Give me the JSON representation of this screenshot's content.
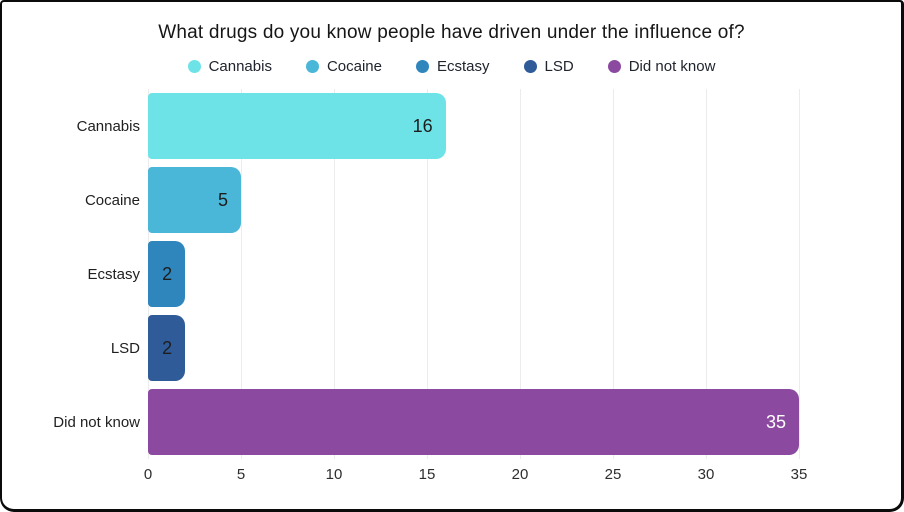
{
  "title": "What drugs do you know people have driven under the influence of?",
  "legend": {
    "position": "top",
    "items": [
      {
        "label": "Cannabis",
        "color": "#6ee3e7"
      },
      {
        "label": "Cocaine",
        "color": "#4ab6d8"
      },
      {
        "label": "Ecstasy",
        "color": "#2e86bd"
      },
      {
        "label": "LSD",
        "color": "#2f5b99"
      },
      {
        "label": "Did not know",
        "color": "#8b4aa0"
      }
    ]
  },
  "chart_data": {
    "type": "bar",
    "orientation": "horizontal",
    "title": "What drugs do you know people have driven under the influence of?",
    "categories": [
      "Cannabis",
      "Cocaine",
      "Ecstasy",
      "LSD",
      "Did not know"
    ],
    "values": [
      16,
      5,
      2,
      2,
      35
    ],
    "value_labels": [
      "16",
      "5",
      "2",
      "2",
      "35"
    ],
    "colors": [
      "#6ee3e7",
      "#4ab6d8",
      "#2e86bd",
      "#2f5b99",
      "#8b4aa0"
    ],
    "value_label_colors": [
      "#1d1d1d",
      "#1d1d1d",
      "#1d1d1d",
      "#1d1d1d",
      "#ffffff"
    ],
    "xlabel": "",
    "ylabel": "",
    "xlim": [
      0,
      35
    ],
    "x_ticks": [
      "0",
      "5",
      "10",
      "15",
      "20",
      "25",
      "30",
      "35"
    ],
    "grid": "vertical-light",
    "gridline_color": "#ececec",
    "legend_position": "top",
    "background": "#ffffff"
  },
  "frame": {
    "border_color": "#0b0b0b",
    "background": "#ffffff"
  }
}
